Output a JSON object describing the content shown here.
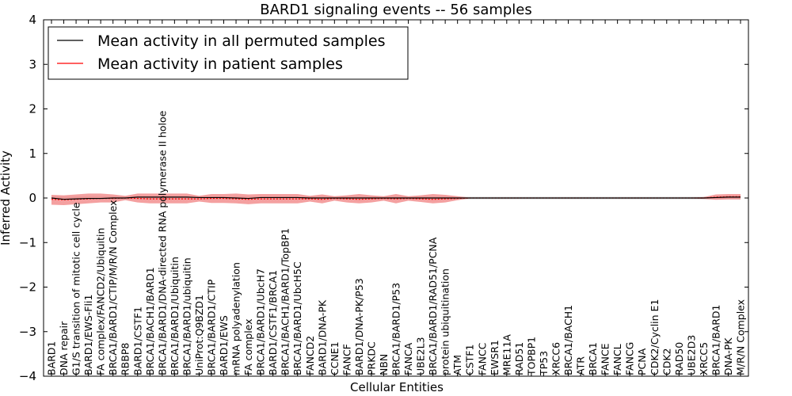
{
  "chart_data": {
    "type": "line",
    "title": "BARD1 signaling events -- 56 samples",
    "xlabel": "Cellular Entities",
    "ylabel": "Inferred Activity",
    "ylim": [
      -4,
      4
    ],
    "yticks": [
      4,
      3,
      2,
      1,
      0,
      -1,
      -2,
      -3,
      -4
    ],
    "ytick_labels": [
      "4",
      "3",
      "2",
      "1",
      "0",
      "−1",
      "−2",
      "−3",
      "−4"
    ],
    "legend_position": "upper-left",
    "categories": [
      "BARD1",
      "DNA repair",
      "G1/S transition of mitotic cell cycle",
      "BARD1/EWS-Fli1",
      "FA complex/FANCD2/Ubiquitin",
      "BRCA1/BARD1/CTIP/M/R/N Complex",
      "RBBP8",
      "BARD1/CSTF1",
      "BRCA1/BACH1/BARD1",
      "BRCA1/BARD1/DNA-directed RNA polymerase II holoe",
      "BRCA1/BARD1/Ubiquitin",
      "BRCA1/BARD1/ubiquitin",
      "UniProt:Q9BZD1",
      "BRCA1/BARD1/CTIP",
      "BARD1/EWS",
      "mRNA polyadenylation",
      "FA complex",
      "BRCA1/BARD1/UbcH7",
      "BARD1/CSTF1/BRCA1",
      "BRCA1/BACH1/BARD1/TopBP1",
      "BRCA1/BARD1/UbcH5C",
      "FANCD2",
      "BARD1/DNA-PK",
      "CCNE1",
      "FANCF",
      "BARD1/DNA-PK/P53",
      "PRKDC",
      "NBN",
      "BRCA1/BARD1/P53",
      "FANCA",
      "UBE2L3",
      "BRCA1/BARD1/RAD51/PCNA",
      "protein ubiquitination",
      "ATM",
      "CSTF1",
      "FANCC",
      "EWSR1",
      "MRE11A",
      "RAD51",
      "TOPBP1",
      "TP53",
      "XRCC6",
      "BRCA1/BACH1",
      "ATR",
      "BRCA1",
      "FANCE",
      "FANCL",
      "FANCG",
      "PCNA",
      "CDK2/Cyclin E1",
      "CDK2",
      "RAD50",
      "UBE2D3",
      "XRCC5",
      "BRCA1/BARD1",
      "DNA-PK",
      "M/R/N Complex"
    ],
    "series": [
      {
        "name": "Mean activity in all permuted samples",
        "color": "#000000",
        "values": [
          0,
          -0.03,
          -0.02,
          -0.01,
          -0.01,
          0,
          0,
          0.02,
          0.02,
          0.02,
          0.02,
          0.02,
          0.01,
          0.01,
          0.01,
          0,
          -0.01,
          0.01,
          0.01,
          0.01,
          0.01,
          0,
          0,
          0,
          0,
          0,
          0,
          0,
          0,
          0,
          0,
          0,
          0,
          0,
          0,
          0,
          0,
          0,
          0,
          0,
          0,
          0,
          0,
          0,
          0,
          0,
          0,
          0,
          0,
          0,
          0,
          0,
          0,
          0,
          0.01,
          0.02,
          0.02
        ]
      },
      {
        "name": "Mean activity in patient samples",
        "color": "#ff0000",
        "band_color": "#f08080",
        "values": [
          -0.03,
          -0.04,
          -0.03,
          -0.02,
          -0.01,
          -0.01,
          0,
          -0.01,
          -0.02,
          -0.02,
          -0.02,
          -0.02,
          -0.02,
          -0.01,
          -0.01,
          -0.02,
          -0.03,
          -0.02,
          -0.02,
          -0.02,
          -0.02,
          -0.02,
          -0.03,
          -0.01,
          -0.02,
          -0.03,
          -0.02,
          -0.01,
          -0.02,
          -0.01,
          -0.02,
          -0.03,
          -0.02,
          -0.01,
          0,
          0,
          0,
          0,
          0,
          0,
          0,
          0,
          0,
          0,
          0,
          0,
          0,
          0,
          0,
          0,
          0,
          0,
          0,
          0,
          0.02,
          0.03,
          0.03
        ],
        "band_upper": [
          0.07,
          0.06,
          0.08,
          0.1,
          0.1,
          0.08,
          0.05,
          0.1,
          0.1,
          0.1,
          0.1,
          0.1,
          0.05,
          0.09,
          0.09,
          0.1,
          0.08,
          0.09,
          0.09,
          0.09,
          0.09,
          0.05,
          0.08,
          0.04,
          0.06,
          0.09,
          0.06,
          0.04,
          0.09,
          0.04,
          0.06,
          0.09,
          0.07,
          0.04,
          0.01,
          0.01,
          0.01,
          0.01,
          0.01,
          0.01,
          0.01,
          0.01,
          0.01,
          0.01,
          0.01,
          0.01,
          0.01,
          0.01,
          0.01,
          0.01,
          0.01,
          0.01,
          0.01,
          0.02,
          0.08,
          0.09,
          0.09
        ],
        "band_lower": [
          -0.15,
          -0.16,
          -0.14,
          -0.12,
          -0.1,
          -0.1,
          -0.05,
          -0.1,
          -0.12,
          -0.12,
          -0.12,
          -0.12,
          -0.08,
          -0.11,
          -0.11,
          -0.12,
          -0.14,
          -0.12,
          -0.12,
          -0.12,
          -0.12,
          -0.08,
          -0.12,
          -0.06,
          -0.1,
          -0.12,
          -0.1,
          -0.06,
          -0.12,
          -0.06,
          -0.09,
          -0.12,
          -0.1,
          -0.05,
          -0.01,
          -0.01,
          -0.01,
          -0.01,
          -0.01,
          -0.01,
          -0.01,
          -0.01,
          -0.01,
          -0.01,
          -0.01,
          -0.01,
          -0.01,
          -0.01,
          -0.01,
          -0.01,
          -0.01,
          -0.01,
          -0.01,
          -0.02,
          -0.04,
          -0.03,
          -0.03
        ]
      }
    ],
    "permuted_band": {
      "color": "#c8c8c8",
      "upper": 0.03,
      "lower": -0.03
    }
  }
}
